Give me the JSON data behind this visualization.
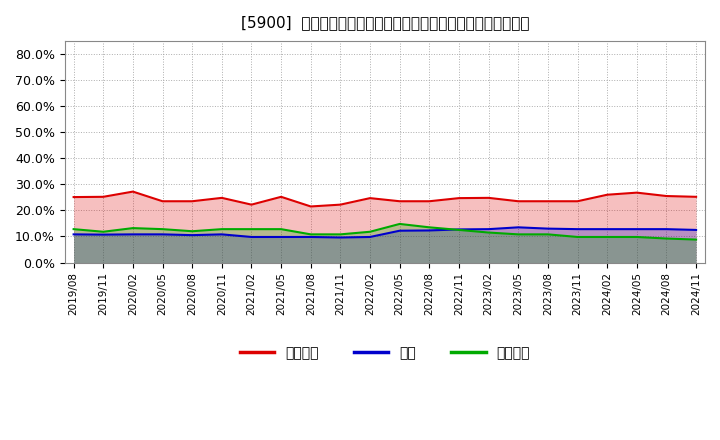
{
  "title": "[5900]  売上債権、在庫、買入債務の総資産に対する比率の推移",
  "x_labels": [
    "2019/08",
    "2019/11",
    "2020/02",
    "2020/05",
    "2020/08",
    "2020/11",
    "2021/02",
    "2021/05",
    "2021/08",
    "2021/11",
    "2022/02",
    "2022/05",
    "2022/08",
    "2022/11",
    "2023/02",
    "2023/05",
    "2023/08",
    "2023/11",
    "2024/02",
    "2024/05",
    "2024/08",
    "2024/11"
  ],
  "series": {
    "売上債権": {
      "color": "#dd0000",
      "values": [
        0.251,
        0.252,
        0.272,
        0.235,
        0.235,
        0.248,
        0.222,
        0.252,
        0.215,
        0.222,
        0.247,
        0.235,
        0.235,
        0.247,
        0.248,
        0.235,
        0.235,
        0.235,
        0.26,
        0.268,
        0.255,
        0.252
      ]
    },
    "在庫": {
      "color": "#0000cc",
      "values": [
        0.108,
        0.107,
        0.108,
        0.108,
        0.105,
        0.108,
        0.098,
        0.098,
        0.098,
        0.096,
        0.098,
        0.122,
        0.123,
        0.127,
        0.128,
        0.135,
        0.13,
        0.128,
        0.128,
        0.128,
        0.128,
        0.125
      ]
    },
    "買入債務": {
      "color": "#00aa00",
      "values": [
        0.128,
        0.118,
        0.132,
        0.128,
        0.12,
        0.128,
        0.128,
        0.128,
        0.108,
        0.108,
        0.118,
        0.148,
        0.135,
        0.125,
        0.115,
        0.108,
        0.108,
        0.098,
        0.098,
        0.098,
        0.092,
        0.088
      ]
    }
  },
  "ylim": [
    0.0,
    0.85
  ],
  "yticks": [
    0.0,
    0.1,
    0.2,
    0.3,
    0.4,
    0.5,
    0.6,
    0.7,
    0.8
  ],
  "ytick_labels": [
    "0.0%",
    "10.0%",
    "20.0%",
    "30.0%",
    "40.0%",
    "50.0%",
    "60.0%",
    "70.0%",
    "80.0%"
  ],
  "bg_color": "#ffffff",
  "plot_bg_color": "#ffffff",
  "grid_color": "#999999",
  "legend_labels": [
    "売上債権",
    "在庫",
    "買入債務"
  ],
  "legend_colors": [
    "#dd0000",
    "#0000cc",
    "#00aa00"
  ]
}
